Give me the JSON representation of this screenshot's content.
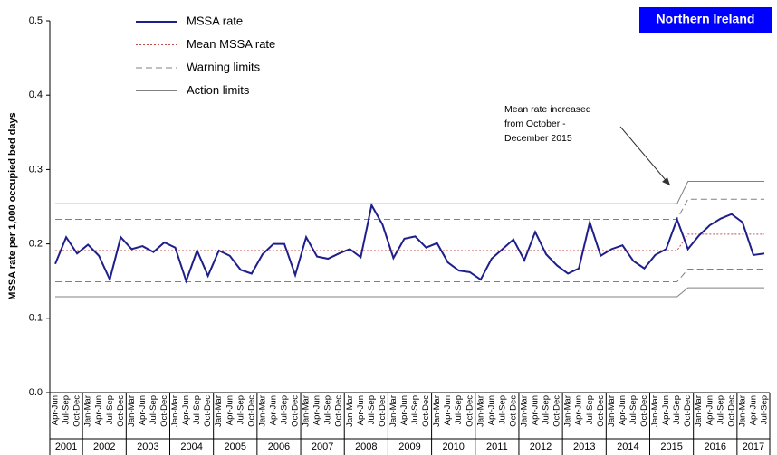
{
  "chart_data": {
    "type": "line",
    "badge": "Northern Ireland",
    "y_label": "MSSA rate per 1,000 occupied bed days",
    "ylim": [
      0,
      0.5
    ],
    "yticks": [
      {
        "value": 0,
        "label": "0.0"
      },
      0.1,
      0.2,
      0.3,
      0.4,
      0.5
    ],
    "groups": [
      {
        "year": "2001",
        "quarters": [
          "Apr-Jun",
          "Jul-Sep",
          "Oct-Dec"
        ]
      },
      {
        "year": "2002",
        "quarters": [
          "Jan-Mar",
          "Apr-Jun",
          "Jul-Sep",
          "Oct-Dec"
        ]
      },
      {
        "year": "2003",
        "quarters": [
          "Jan-Mar",
          "Apr-Jun",
          "Jul-Sep",
          "Oct-Dec"
        ]
      },
      {
        "year": "2004",
        "quarters": [
          "Jan-Mar",
          "Apr-Jun",
          "Jul-Sep",
          "Oct-Dec"
        ]
      },
      {
        "year": "2005",
        "quarters": [
          "Jan-Mar",
          "Apr-Jun",
          "Jul-Sep",
          "Oct-Dec"
        ]
      },
      {
        "year": "2006",
        "quarters": [
          "Jan-Mar",
          "Apr-Jun",
          "Jul-Sep",
          "Oct-Dec"
        ]
      },
      {
        "year": "2007",
        "quarters": [
          "Jan-Mar",
          "Apr-Jun",
          "Jul-Sep",
          "Oct-Dec"
        ]
      },
      {
        "year": "2008",
        "quarters": [
          "Jan-Mar",
          "Apr-Jun",
          "Jul-Sep",
          "Oct-Dec"
        ]
      },
      {
        "year": "2009",
        "quarters": [
          "Jan-Mar",
          "Apr-Jun",
          "Jul-Sep",
          "Oct-Dec"
        ]
      },
      {
        "year": "2010",
        "quarters": [
          "Jan-Mar",
          "Apr-Jun",
          "Jul-Sep",
          "Oct-Dec"
        ]
      },
      {
        "year": "2011",
        "quarters": [
          "Jan-Mar",
          "Apr-Jun",
          "Jul-Sep",
          "Oct-Dec"
        ]
      },
      {
        "year": "2012",
        "quarters": [
          "Jan-Mar",
          "Apr-Jun",
          "Jul-Sep",
          "Oct-Dec"
        ]
      },
      {
        "year": "2013",
        "quarters": [
          "Jan-Mar",
          "Apr-Jun",
          "Jul-Sep",
          "Oct-Dec"
        ]
      },
      {
        "year": "2014",
        "quarters": [
          "Jan-Mar",
          "Apr-Jun",
          "Jul-Sep",
          "Oct-Dec"
        ]
      },
      {
        "year": "2015",
        "quarters": [
          "Jan-Mar",
          "Apr-Jun",
          "Jul-Sep",
          "Oct-Dec"
        ]
      },
      {
        "year": "2016",
        "quarters": [
          "Jan-Mar",
          "Apr-Jun",
          "Jul-Sep",
          "Oct-Dec"
        ]
      },
      {
        "year": "2017",
        "quarters": [
          "Jan-Mar",
          "Apr-Jun",
          "Jul-Sep"
        ]
      }
    ],
    "series": [
      {
        "name": "MSSA rate",
        "color": "#1f1f8c",
        "dash": "solid",
        "width": 2,
        "values": [
          0.173,
          0.209,
          0.187,
          0.199,
          0.184,
          0.152,
          0.209,
          0.193,
          0.197,
          0.189,
          0.202,
          0.195,
          0.15,
          0.191,
          0.157,
          0.191,
          0.184,
          0.165,
          0.16,
          0.186,
          0.2,
          0.2,
          0.158,
          0.209,
          0.183,
          0.18,
          0.187,
          0.193,
          0.182,
          0.252,
          0.226,
          0.181,
          0.207,
          0.21,
          0.195,
          0.201,
          0.175,
          0.164,
          0.162,
          0.152,
          0.18,
          0.193,
          0.206,
          0.178,
          0.216,
          0.186,
          0.171,
          0.16,
          0.167,
          0.229,
          0.184,
          0.193,
          0.198,
          0.177,
          0.167,
          0.185,
          0.193,
          0.233,
          0.193,
          0.211,
          0.225,
          0.234,
          0.24,
          0.229,
          0.185,
          0.187
        ]
      },
      {
        "name": "Mean MSSA rate",
        "color": "#c0504d",
        "dash": "dotted",
        "width": 1,
        "values": [
          0.191,
          0.191,
          0.191,
          0.191,
          0.191,
          0.191,
          0.191,
          0.191,
          0.191,
          0.191,
          0.191,
          0.191,
          0.191,
          0.191,
          0.191,
          0.191,
          0.191,
          0.191,
          0.191,
          0.191,
          0.191,
          0.191,
          0.191,
          0.191,
          0.191,
          0.191,
          0.191,
          0.191,
          0.191,
          0.191,
          0.191,
          0.191,
          0.191,
          0.191,
          0.191,
          0.191,
          0.191,
          0.191,
          0.191,
          0.191,
          0.191,
          0.191,
          0.191,
          0.191,
          0.191,
          0.191,
          0.191,
          0.191,
          0.191,
          0.191,
          0.191,
          0.191,
          0.191,
          0.191,
          0.191,
          0.191,
          0.191,
          0.191,
          0.213,
          0.213,
          0.213,
          0.213,
          0.213,
          0.213,
          0.213,
          0.213
        ]
      },
      {
        "name": "Warning limits",
        "color": "#808080",
        "dash": "dashed",
        "width": 1,
        "values": [
          0.233,
          0.233,
          0.233,
          0.233,
          0.233,
          0.233,
          0.233,
          0.233,
          0.233,
          0.233,
          0.233,
          0.233,
          0.233,
          0.233,
          0.233,
          0.233,
          0.233,
          0.233,
          0.233,
          0.233,
          0.233,
          0.233,
          0.233,
          0.233,
          0.233,
          0.233,
          0.233,
          0.233,
          0.233,
          0.233,
          0.233,
          0.233,
          0.233,
          0.233,
          0.233,
          0.233,
          0.233,
          0.233,
          0.233,
          0.233,
          0.233,
          0.233,
          0.233,
          0.233,
          0.233,
          0.233,
          0.233,
          0.233,
          0.233,
          0.233,
          0.233,
          0.233,
          0.233,
          0.233,
          0.233,
          0.233,
          0.233,
          0.233,
          0.26,
          0.26,
          0.26,
          0.26,
          0.26,
          0.26,
          0.26,
          0.26
        ]
      },
      {
        "name": "Action limits",
        "color": "#808080",
        "dash": "solid",
        "width": 1,
        "values": [
          0.254,
          0.254,
          0.254,
          0.254,
          0.254,
          0.254,
          0.254,
          0.254,
          0.254,
          0.254,
          0.254,
          0.254,
          0.254,
          0.254,
          0.254,
          0.254,
          0.254,
          0.254,
          0.254,
          0.254,
          0.254,
          0.254,
          0.254,
          0.254,
          0.254,
          0.254,
          0.254,
          0.254,
          0.254,
          0.254,
          0.254,
          0.254,
          0.254,
          0.254,
          0.254,
          0.254,
          0.254,
          0.254,
          0.254,
          0.254,
          0.254,
          0.254,
          0.254,
          0.254,
          0.254,
          0.254,
          0.254,
          0.254,
          0.254,
          0.254,
          0.254,
          0.254,
          0.254,
          0.254,
          0.254,
          0.254,
          0.254,
          0.254,
          0.284,
          0.284,
          0.284,
          0.284,
          0.284,
          0.284,
          0.284,
          0.284
        ]
      },
      {
        "color": "#808080",
        "dash": "dashed",
        "width": 1,
        "values": [
          0.149,
          0.149,
          0.149,
          0.149,
          0.149,
          0.149,
          0.149,
          0.149,
          0.149,
          0.149,
          0.149,
          0.149,
          0.149,
          0.149,
          0.149,
          0.149,
          0.149,
          0.149,
          0.149,
          0.149,
          0.149,
          0.149,
          0.149,
          0.149,
          0.149,
          0.149,
          0.149,
          0.149,
          0.149,
          0.149,
          0.149,
          0.149,
          0.149,
          0.149,
          0.149,
          0.149,
          0.149,
          0.149,
          0.149,
          0.149,
          0.149,
          0.149,
          0.149,
          0.149,
          0.149,
          0.149,
          0.149,
          0.149,
          0.149,
          0.149,
          0.149,
          0.149,
          0.149,
          0.149,
          0.149,
          0.149,
          0.149,
          0.149,
          0.166,
          0.166,
          0.166,
          0.166,
          0.166,
          0.166,
          0.166,
          0.166
        ]
      },
      {
        "color": "#808080",
        "dash": "solid",
        "width": 1,
        "values": [
          0.129,
          0.129,
          0.129,
          0.129,
          0.129,
          0.129,
          0.129,
          0.129,
          0.129,
          0.129,
          0.129,
          0.129,
          0.129,
          0.129,
          0.129,
          0.129,
          0.129,
          0.129,
          0.129,
          0.129,
          0.129,
          0.129,
          0.129,
          0.129,
          0.129,
          0.129,
          0.129,
          0.129,
          0.129,
          0.129,
          0.129,
          0.129,
          0.129,
          0.129,
          0.129,
          0.129,
          0.129,
          0.129,
          0.129,
          0.129,
          0.129,
          0.129,
          0.129,
          0.129,
          0.129,
          0.129,
          0.129,
          0.129,
          0.129,
          0.129,
          0.129,
          0.129,
          0.129,
          0.129,
          0.129,
          0.129,
          0.129,
          0.129,
          0.141,
          0.141,
          0.141,
          0.141,
          0.141,
          0.141,
          0.141,
          0.141
        ]
      }
    ],
    "annotation": [
      "Mean rate increased",
      "from October -",
      "December 2015"
    ]
  }
}
